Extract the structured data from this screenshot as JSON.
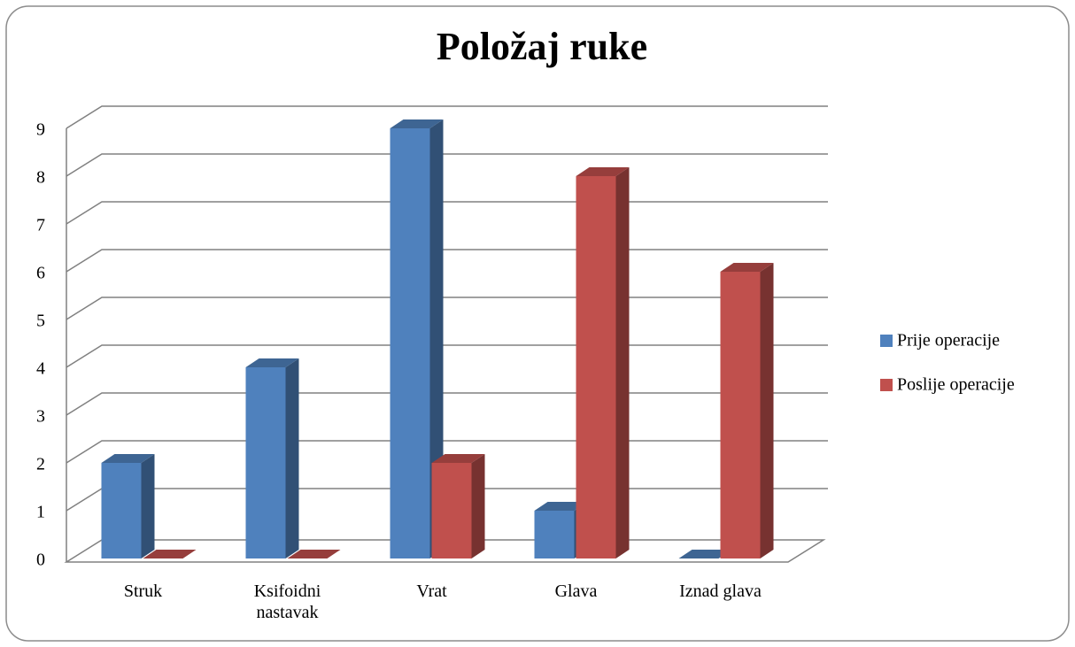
{
  "chart_data": {
    "type": "bar",
    "title": "Položaj ruke",
    "categories": [
      "Struk",
      "Ksifoidni nastavak",
      "Vrat",
      "Glava",
      "Iznad glava"
    ],
    "series": [
      {
        "name": "Prije operacije",
        "color": "#4f81bd",
        "values": [
          2,
          4,
          9,
          1,
          0
        ]
      },
      {
        "name": "Poslije operacije",
        "color": "#c0504d",
        "values": [
          0,
          0,
          2,
          8,
          6
        ]
      }
    ],
    "ylim": [
      0,
      9
    ],
    "yticks": [
      0,
      1,
      2,
      3,
      4,
      5,
      6,
      7,
      8,
      9
    ],
    "grid": true,
    "legend": "right"
  }
}
